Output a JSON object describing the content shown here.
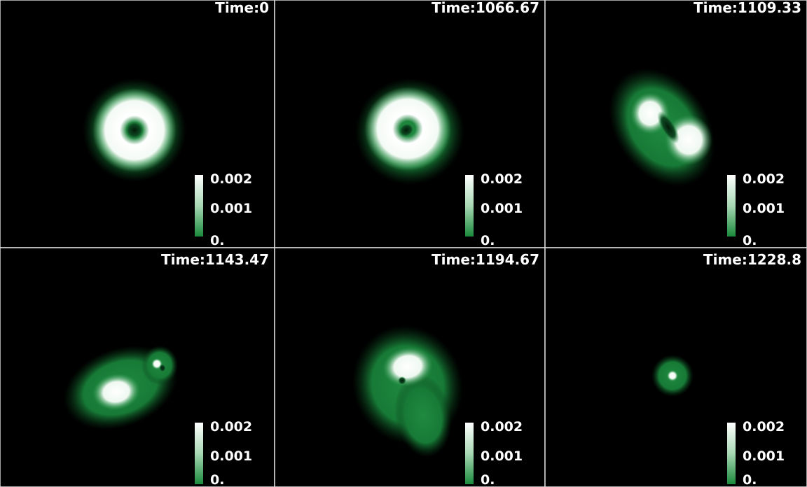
{
  "panels": [
    {
      "title": "Time:0",
      "colorbar": [
        "0.002",
        "0.001",
        "0."
      ]
    },
    {
      "title": "Time:1066.67",
      "colorbar": [
        "0.002",
        "0.001",
        "0."
      ]
    },
    {
      "title": "Time:1109.33",
      "colorbar": [
        "0.002",
        "0.001",
        "0."
      ]
    },
    {
      "title": "Time:1143.47",
      "colorbar": [
        "0.002",
        "0.001",
        "0."
      ]
    },
    {
      "title": "Time:1194.67",
      "colorbar": [
        "0.002",
        "0.001",
        "0."
      ]
    },
    {
      "title": "Time:1228.8",
      "colorbar": [
        "0.002",
        "0.001",
        "0."
      ]
    }
  ]
}
